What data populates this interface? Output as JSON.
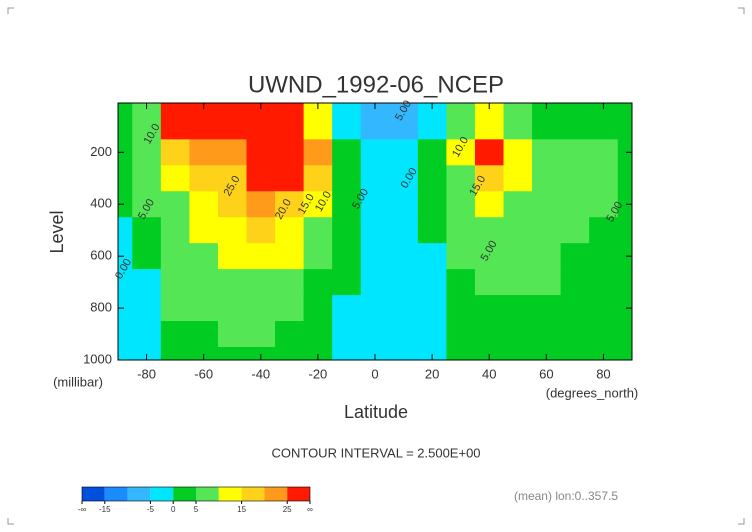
{
  "chart_data": {
    "type": "contour",
    "title": "UWND_1992-06_NCEP",
    "ylabel": "Level",
    "yunits": "(millibar)",
    "xlabel": "Latitude",
    "xunits": "(degrees_north)",
    "note": "CONTOUR INTERVAL = 2.500E+00",
    "footer": "(mean) lon:0..357.5",
    "x": [
      -90,
      -80,
      -70,
      -60,
      -50,
      -40,
      -30,
      -20,
      -10,
      0,
      10,
      20,
      30,
      40,
      50,
      60,
      70,
      80,
      90
    ],
    "y": [
      100,
      200,
      300,
      400,
      500,
      600,
      700,
      800,
      900,
      1000
    ],
    "values": [
      [
        2,
        5,
        25,
        32,
        32,
        30,
        25,
        12,
        -2,
        -8,
        -6,
        -2,
        5,
        10,
        6,
        4,
        3,
        3,
        2
      ],
      [
        2,
        8,
        15,
        20,
        22,
        28,
        30,
        20,
        2,
        -5,
        -3,
        0,
        10,
        26,
        12,
        7,
        6,
        5,
        3
      ],
      [
        2,
        7,
        10,
        15,
        18,
        26,
        28,
        18,
        2,
        -5,
        -2,
        2,
        8,
        16,
        10,
        7,
        8,
        6,
        3
      ],
      [
        1,
        5,
        8,
        12,
        16,
        20,
        18,
        12,
        2,
        -3,
        -1,
        1,
        6,
        11,
        8,
        7,
        7,
        6,
        3
      ],
      [
        -1,
        4,
        7,
        10,
        14,
        16,
        14,
        8,
        1,
        -2,
        -4,
        0,
        5,
        9,
        8,
        6,
        5,
        4,
        3
      ],
      [
        -2,
        3,
        6,
        8,
        10,
        12,
        10,
        5,
        0,
        -2,
        -4,
        -1,
        5,
        7,
        7,
        6,
        4,
        3,
        2
      ],
      [
        -1,
        -2,
        6,
        7,
        8,
        9,
        7,
        3,
        0,
        -1,
        -3,
        -1,
        3,
        6,
        5,
        5,
        3,
        2,
        2
      ],
      [
        -1,
        -2,
        5,
        6,
        6,
        6,
        5,
        2,
        -1,
        -2,
        -1,
        -1,
        2,
        3,
        3,
        2,
        2,
        1,
        1
      ],
      [
        -1,
        -2,
        1,
        4,
        5,
        5,
        3,
        1,
        -1,
        -3,
        -1,
        -1,
        1,
        1,
        1,
        1,
        1,
        1,
        1
      ],
      [
        -1,
        -1,
        0,
        2,
        3,
        3,
        2,
        1,
        -1,
        -4,
        -1,
        -1,
        1,
        1,
        1,
        1,
        1,
        1,
        1
      ]
    ],
    "xlim": [
      -90,
      90
    ],
    "ylim": [
      1000,
      10
    ],
    "xticks": [
      -80,
      -60,
      -40,
      -20,
      0,
      20,
      40,
      60,
      80
    ],
    "yticks": [
      200,
      400,
      600,
      800,
      1000
    ],
    "annotations": [
      "5.00",
      "10.0",
      "5.00",
      "0.00",
      "25.0",
      "20.0",
      "15.0",
      "10.0",
      "5.00",
      "0.00",
      "10.0",
      "15.0",
      "5.00",
      "5.00"
    ],
    "colorbar": {
      "levels": [
        -20,
        -15,
        -10,
        -5,
        0,
        5,
        10,
        15,
        20,
        25,
        30
      ],
      "colors": [
        "#0050dd",
        "#1a8cff",
        "#33b8ff",
        "#00e6ff",
        "#00cc22",
        "#55e655",
        "#ffff00",
        "#ffd21a",
        "#ff9a1a",
        "#ff1a00"
      ],
      "ticks": [
        {
          "value": -20,
          "label": "-∞"
        },
        -15,
        -5,
        0,
        5,
        15,
        25,
        {
          "value": 30,
          "label": "∞"
        }
      ]
    }
  }
}
